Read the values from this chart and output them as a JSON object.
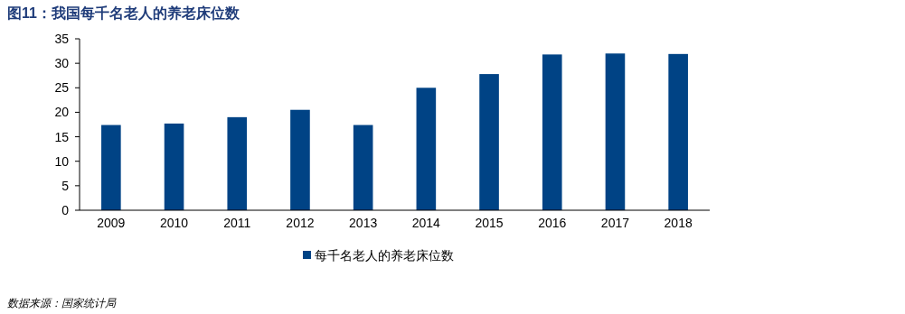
{
  "chart_data": {
    "type": "bar",
    "title": "图11：我国每千名老人的养老床位数",
    "categories": [
      "2009",
      "2010",
      "2011",
      "2012",
      "2013",
      "2014",
      "2015",
      "2016",
      "2017",
      "2018"
    ],
    "series": [
      {
        "name": "每千名老人的养老床位数",
        "color": "#004385",
        "values": [
          17.4,
          17.7,
          19.0,
          20.5,
          17.4,
          25.0,
          27.8,
          31.8,
          32.0,
          31.9
        ]
      }
    ],
    "ylim": [
      0,
      35
    ],
    "yticks": [
      0,
      5,
      10,
      15,
      20,
      25,
      30,
      35
    ],
    "grid": false,
    "legend": "bottom",
    "annotations": [
      "数据来源：国家统计局"
    ]
  }
}
